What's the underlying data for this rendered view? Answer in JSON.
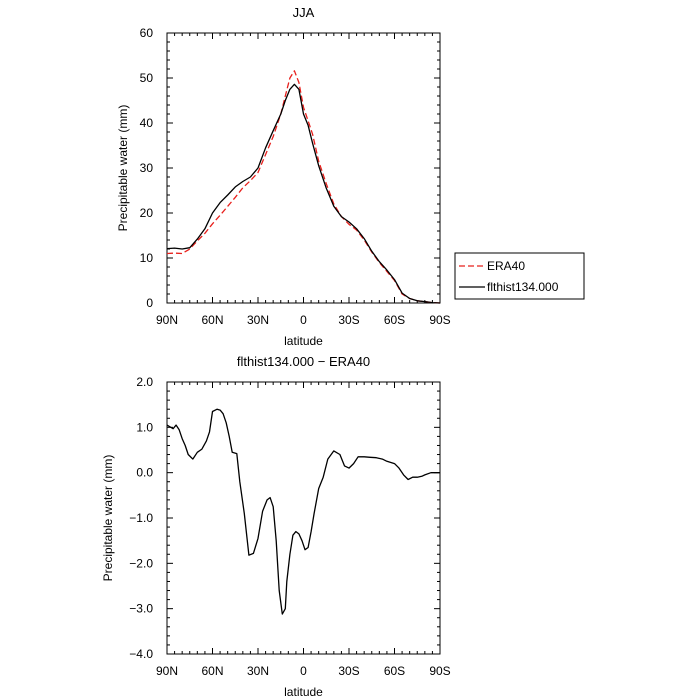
{
  "chart_data": [
    {
      "type": "line",
      "title": "JJA",
      "xlabel": "latitude",
      "ylabel": "Precipitable water (mm)",
      "xlim": [
        90,
        -90
      ],
      "ylim": [
        0,
        60
      ],
      "xticks": [
        90,
        60,
        30,
        0,
        -30,
        -60,
        -90
      ],
      "xtick_labels": [
        "90N",
        "60N",
        "30N",
        "0",
        "30S",
        "60S",
        "90S"
      ],
      "yticks": [
        0,
        10,
        20,
        30,
        40,
        50,
        60
      ],
      "ytick_labels": [
        "0",
        "10",
        "20",
        "30",
        "40",
        "50",
        "60"
      ],
      "legend_position": "right",
      "series": [
        {
          "name": "ERA40",
          "color": "#e8201c",
          "dash": "dashed",
          "x": [
            90,
            85,
            80,
            75,
            70,
            65,
            60,
            55,
            50,
            45,
            40,
            35,
            30,
            25,
            20,
            15,
            12,
            9,
            6,
            3,
            0,
            -3,
            -6,
            -10,
            -15,
            -20,
            -25,
            -30,
            -35,
            -40,
            -45,
            -50,
            -55,
            -60,
            -65,
            -70,
            -75,
            -80,
            -85,
            -90
          ],
          "y": [
            11.0,
            11.1,
            11.0,
            12.0,
            13.8,
            15.5,
            17.6,
            19.5,
            21.5,
            23.5,
            25.6,
            27.2,
            29.0,
            33.0,
            37.0,
            42.0,
            46.0,
            50.0,
            51.6,
            49.0,
            43.5,
            40.5,
            37.5,
            31.5,
            26.5,
            22.0,
            19.2,
            17.5,
            16.2,
            14.0,
            11.3,
            9.0,
            7.0,
            5.0,
            2.0,
            1.0,
            0.5,
            0.3,
            0.1,
            0.0
          ]
        },
        {
          "name": "flthist134.000",
          "color": "#000000",
          "dash": "solid",
          "x": [
            90,
            85,
            80,
            75,
            70,
            65,
            60,
            55,
            50,
            45,
            40,
            35,
            30,
            25,
            20,
            15,
            12,
            9,
            6,
            3,
            0,
            -3,
            -6,
            -10,
            -15,
            -20,
            -25,
            -30,
            -35,
            -40,
            -45,
            -50,
            -55,
            -60,
            -65,
            -70,
            -75,
            -80,
            -85,
            -90
          ],
          "y": [
            12.1,
            12.2,
            12.0,
            12.3,
            14.2,
            16.5,
            20.0,
            22.3,
            24.0,
            25.8,
            27.0,
            28.0,
            30.0,
            34.5,
            38.3,
            42.0,
            45.0,
            47.5,
            48.6,
            47.5,
            42.0,
            39.5,
            35.5,
            30.5,
            25.5,
            21.5,
            19.2,
            18.0,
            16.5,
            14.3,
            11.5,
            9.2,
            7.3,
            5.2,
            2.2,
            1.0,
            0.5,
            0.3,
            0.1,
            0.0
          ]
        }
      ]
    },
    {
      "type": "line",
      "title": "flthist134.000 − ERA40",
      "xlabel": "latitude",
      "ylabel": "Precipitable water (mm)",
      "xlim": [
        90,
        -90
      ],
      "ylim": [
        -4.0,
        2.0
      ],
      "xticks": [
        90,
        60,
        30,
        0,
        -30,
        -60,
        -90
      ],
      "xtick_labels": [
        "90N",
        "60N",
        "30N",
        "0",
        "30S",
        "60S",
        "90S"
      ],
      "yticks": [
        2.0,
        1.0,
        0.0,
        -1.0,
        -2.0,
        -3.0,
        -4.0
      ],
      "ytick_labels": [
        "2.0",
        "1.0",
        "0.0",
        "−1.0",
        "−2.0",
        "−3.0",
        "−4.0"
      ],
      "series": [
        {
          "color": "#000000",
          "dash": "solid",
          "x": [
            90,
            86,
            84,
            82,
            80,
            78,
            76,
            73,
            70,
            67,
            64,
            62,
            60,
            57,
            55,
            53,
            51,
            49,
            47,
            44,
            42,
            39,
            36,
            33,
            30,
            27,
            24,
            22,
            20,
            18,
            16,
            14,
            12,
            11,
            9,
            7,
            5,
            3,
            1,
            -1,
            -3,
            -5,
            -7,
            -10,
            -13,
            -16,
            -20,
            -24,
            -27,
            -30,
            -33,
            -36,
            -40,
            -44,
            -48,
            -52,
            -55,
            -60,
            -63,
            -66,
            -69,
            -72,
            -75,
            -78,
            -80,
            -84,
            -88,
            -90
          ],
          "y": [
            1.05,
            0.97,
            1.05,
            0.95,
            0.75,
            0.6,
            0.4,
            0.3,
            0.45,
            0.52,
            0.7,
            0.9,
            1.35,
            1.4,
            1.38,
            1.3,
            1.1,
            0.8,
            0.45,
            0.42,
            -0.2,
            -0.9,
            -1.82,
            -1.78,
            -1.45,
            -0.85,
            -0.6,
            -0.55,
            -0.75,
            -1.5,
            -2.6,
            -3.12,
            -3.0,
            -2.4,
            -1.8,
            -1.38,
            -1.3,
            -1.35,
            -1.5,
            -1.7,
            -1.65,
            -1.3,
            -0.9,
            -0.35,
            -0.1,
            0.3,
            0.48,
            0.4,
            0.15,
            0.1,
            0.2,
            0.35,
            0.35,
            0.34,
            0.33,
            0.3,
            0.25,
            0.2,
            0.1,
            -0.05,
            -0.15,
            -0.1,
            -0.1,
            -0.08,
            -0.05,
            0.0,
            0.0,
            0.0
          ]
        }
      ]
    }
  ]
}
